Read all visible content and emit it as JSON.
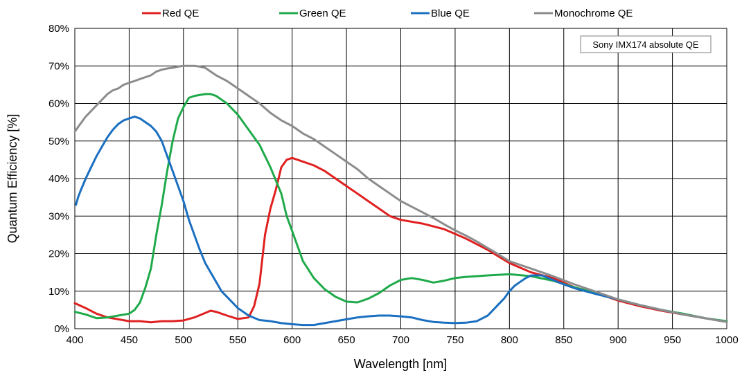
{
  "chart_data": {
    "type": "line",
    "xlabel": "Wavelength [nm]",
    "ylabel": "Quantum Efficiency [%]",
    "xlim": [
      400,
      1000
    ],
    "ylim": [
      0,
      80
    ],
    "xticks": [
      400,
      450,
      500,
      550,
      600,
      650,
      700,
      750,
      800,
      850,
      900,
      950,
      1000
    ],
    "yticks": [
      0,
      10,
      20,
      30,
      40,
      50,
      60,
      70,
      80
    ],
    "ytick_labels": [
      "0%",
      "10%",
      "20%",
      "30%",
      "40%",
      "50%",
      "60%",
      "70%",
      "80%"
    ],
    "grid": true,
    "legend_position": "top",
    "annotation": "Sony IMX174 absolute QE",
    "series": [
      {
        "name": "Red QE",
        "color": "#e02020",
        "x": [
          400,
          410,
          420,
          430,
          440,
          450,
          460,
          470,
          480,
          490,
          500,
          510,
          520,
          525,
          530,
          540,
          550,
          560,
          565,
          570,
          575,
          580,
          585,
          590,
          595,
          600,
          610,
          620,
          630,
          640,
          650,
          660,
          670,
          680,
          690,
          700,
          720,
          740,
          760,
          780,
          800,
          820,
          840,
          860,
          880,
          900,
          920,
          940,
          960,
          980,
          1000
        ],
        "y": [
          6.8,
          5.5,
          4.0,
          3.0,
          2.5,
          2.0,
          2.0,
          1.7,
          2.0,
          2.0,
          2.2,
          3.0,
          4.2,
          4.8,
          4.5,
          3.5,
          2.6,
          3.0,
          6.0,
          12.0,
          25.0,
          32.0,
          37.0,
          43.0,
          45.0,
          45.5,
          44.5,
          43.5,
          42.0,
          40.0,
          38.0,
          36.0,
          34.0,
          32.0,
          30.0,
          29.0,
          28.0,
          26.5,
          24.0,
          21.0,
          17.5,
          15.0,
          13.5,
          11.0,
          9.5,
          7.5,
          6.0,
          4.8,
          3.8,
          2.8,
          1.8
        ]
      },
      {
        "name": "Green QE",
        "color": "#1faa4a",
        "x": [
          400,
          410,
          420,
          430,
          440,
          450,
          455,
          460,
          465,
          470,
          475,
          480,
          485,
          490,
          495,
          500,
          505,
          510,
          520,
          525,
          530,
          540,
          550,
          560,
          570,
          580,
          590,
          595,
          600,
          605,
          610,
          620,
          630,
          640,
          650,
          660,
          670,
          680,
          690,
          700,
          710,
          720,
          730,
          740,
          750,
          760,
          780,
          800,
          820,
          840,
          860,
          880,
          900,
          920,
          940,
          960,
          980,
          1000
        ],
        "y": [
          4.5,
          3.8,
          2.8,
          3.0,
          3.5,
          4.0,
          5.0,
          7.0,
          11.0,
          16.0,
          25.0,
          33.0,
          42.0,
          50.0,
          56.0,
          59.0,
          61.5,
          62.0,
          62.5,
          62.5,
          62.0,
          60.0,
          57.0,
          53.0,
          49.0,
          43.0,
          36.0,
          30.0,
          26.0,
          22.0,
          18.0,
          13.5,
          10.5,
          8.5,
          7.2,
          7.0,
          8.0,
          9.5,
          11.5,
          13.0,
          13.5,
          13.0,
          12.3,
          12.8,
          13.5,
          13.8,
          14.2,
          14.5,
          14.0,
          12.8,
          11.0,
          9.5,
          7.8,
          6.3,
          5.0,
          4.0,
          2.8,
          2.0
        ]
      },
      {
        "name": "Blue QE",
        "color": "#1a6fc0",
        "x": [
          401,
          403,
          405,
          410,
          415,
          420,
          425,
          430,
          435,
          440,
          445,
          450,
          455,
          460,
          465,
          470,
          475,
          480,
          485,
          490,
          495,
          500,
          505,
          510,
          515,
          520,
          525,
          530,
          535,
          540,
          545,
          550,
          560,
          570,
          580,
          590,
          600,
          610,
          620,
          630,
          640,
          650,
          660,
          670,
          680,
          690,
          700,
          710,
          720,
          730,
          740,
          750,
          760,
          770,
          780,
          785,
          790,
          795,
          800,
          805,
          810,
          815,
          820,
          830,
          840,
          850,
          860,
          870,
          880,
          900,
          920,
          940,
          960,
          980,
          1000
        ],
        "y": [
          33.0,
          35.0,
          36.5,
          40.0,
          43.0,
          46.0,
          48.5,
          51.0,
          53.0,
          54.5,
          55.5,
          56.0,
          56.5,
          56.0,
          55.0,
          54.0,
          52.5,
          50.0,
          46.0,
          42.0,
          38.0,
          34.0,
          29.0,
          25.0,
          21.0,
          17.5,
          15.0,
          12.5,
          10.0,
          8.5,
          7.0,
          5.5,
          3.5,
          2.3,
          2.0,
          1.5,
          1.2,
          1.0,
          1.0,
          1.5,
          2.0,
          2.5,
          3.0,
          3.3,
          3.5,
          3.5,
          3.3,
          3.0,
          2.3,
          1.8,
          1.6,
          1.5,
          1.6,
          2.0,
          3.5,
          5.0,
          6.5,
          8.0,
          10.0,
          11.5,
          12.5,
          13.5,
          14.2,
          14.2,
          13.0,
          11.8,
          10.8,
          10.0,
          9.2,
          7.8,
          6.3,
          5.0,
          3.8,
          2.8,
          1.8
        ]
      },
      {
        "name": "Monochrome QE",
        "color": "#8c8c8c",
        "x": [
          400,
          405,
          410,
          415,
          420,
          425,
          430,
          435,
          440,
          445,
          450,
          455,
          460,
          465,
          470,
          475,
          480,
          485,
          490,
          495,
          500,
          505,
          510,
          515,
          520,
          525,
          530,
          540,
          550,
          560,
          570,
          580,
          590,
          600,
          610,
          620,
          630,
          640,
          650,
          660,
          670,
          680,
          690,
          700,
          710,
          720,
          730,
          740,
          750,
          760,
          770,
          780,
          790,
          800,
          820,
          840,
          860,
          880,
          900,
          920,
          940,
          960,
          980,
          1000
        ],
        "y": [
          52.5,
          54.5,
          56.5,
          58.0,
          59.5,
          61.0,
          62.5,
          63.5,
          64.0,
          65.0,
          65.5,
          66.0,
          66.5,
          67.0,
          67.5,
          68.5,
          69.0,
          69.3,
          69.5,
          69.8,
          70.0,
          70.0,
          70.0,
          69.8,
          69.5,
          68.5,
          67.5,
          66.0,
          64.0,
          62.0,
          60.0,
          57.5,
          55.5,
          54.0,
          52.0,
          50.5,
          48.5,
          46.5,
          44.5,
          42.5,
          40.0,
          38.0,
          36.0,
          34.0,
          32.5,
          31.0,
          29.5,
          27.8,
          26.2,
          24.8,
          23.2,
          21.5,
          19.8,
          18.0,
          16.0,
          14.0,
          11.8,
          9.8,
          7.8,
          6.3,
          5.0,
          3.8,
          2.8,
          1.8
        ]
      }
    ]
  }
}
